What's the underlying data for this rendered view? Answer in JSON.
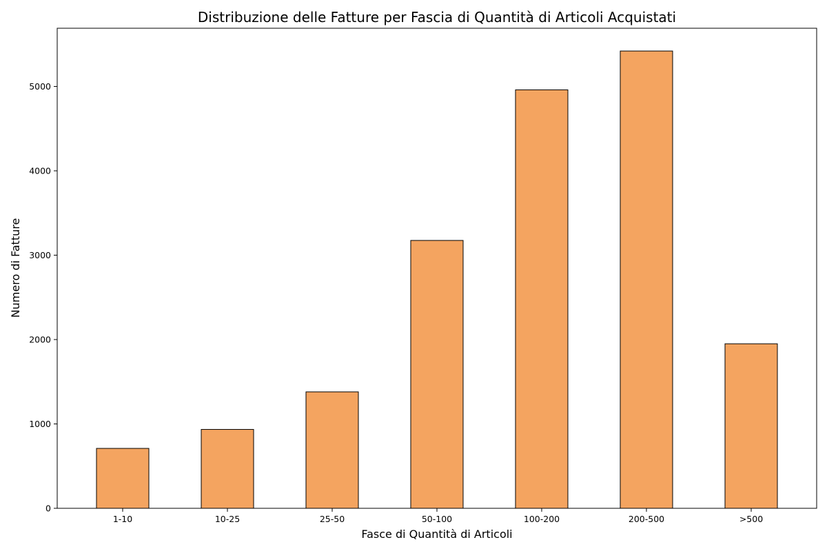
{
  "chart_data": {
    "type": "bar",
    "title": "Distribuzione delle Fatture per Fascia di Quantità di Articoli Acquistati",
    "xlabel": "Fasce di Quantità di Articoli",
    "ylabel": "Numero di Fatture",
    "categories": [
      "1-10",
      "10-25",
      "25-50",
      "50-100",
      "100-200",
      "200-500",
      ">500"
    ],
    "values": [
      710,
      935,
      1380,
      3175,
      4960,
      5420,
      1950
    ],
    "ylim": [
      0,
      5690
    ],
    "yticks": [
      0,
      1000,
      2000,
      3000,
      4000,
      5000
    ],
    "bar_color": "#f4a460",
    "edge_color": "#000000",
    "grid": false,
    "legend": "none"
  }
}
